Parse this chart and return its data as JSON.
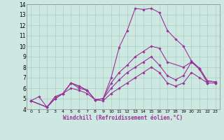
{
  "xlabel": "Windchill (Refroidissement éolien,°C)",
  "background_color": "#cce8e0",
  "grid_color": "#aaccc4",
  "line_color": "#993399",
  "xlim": [
    -0.5,
    23.5
  ],
  "ylim": [
    4,
    14
  ],
  "yticks": [
    4,
    5,
    6,
    7,
    8,
    9,
    10,
    11,
    12,
    13,
    14
  ],
  "xticks": [
    0,
    1,
    2,
    3,
    4,
    5,
    6,
    7,
    8,
    9,
    10,
    11,
    12,
    13,
    14,
    15,
    16,
    17,
    18,
    19,
    20,
    21,
    22,
    23
  ],
  "line1_x": [
    0,
    1,
    2,
    3,
    4,
    5,
    6,
    7,
    8,
    9,
    10,
    11,
    12,
    13,
    14,
    15,
    16,
    17,
    18,
    19,
    20,
    21,
    22,
    23
  ],
  "line1_y": [
    4.8,
    5.2,
    4.2,
    5.2,
    5.5,
    6.5,
    6.2,
    5.8,
    4.9,
    5.0,
    7.0,
    9.9,
    11.5,
    13.6,
    13.5,
    13.6,
    13.2,
    11.5,
    10.7,
    10.0,
    8.6,
    7.9,
    6.7,
    6.6
  ],
  "line2_x": [
    0,
    2,
    3,
    4,
    5,
    6,
    7,
    8,
    9,
    10,
    11,
    12,
    13,
    14,
    15,
    16,
    17,
    19,
    20,
    21,
    22,
    23
  ],
  "line2_y": [
    4.8,
    4.2,
    5.0,
    5.5,
    6.5,
    6.2,
    5.8,
    4.9,
    5.0,
    6.5,
    7.5,
    8.2,
    9.0,
    9.5,
    10.0,
    9.8,
    8.5,
    8.0,
    8.5,
    7.9,
    6.7,
    6.6
  ],
  "line3_x": [
    0,
    2,
    3,
    4,
    5,
    6,
    7,
    8,
    9,
    10,
    11,
    12,
    13,
    14,
    15,
    16,
    17,
    18,
    19,
    20,
    21,
    22,
    23
  ],
  "line3_y": [
    4.8,
    4.2,
    5.0,
    5.5,
    6.5,
    6.0,
    5.8,
    4.9,
    5.0,
    6.0,
    6.8,
    7.5,
    8.0,
    8.5,
    9.0,
    8.2,
    7.2,
    6.8,
    7.2,
    8.5,
    7.8,
    6.5,
    6.5
  ],
  "line4_x": [
    0,
    2,
    3,
    4,
    5,
    6,
    7,
    8,
    9,
    10,
    11,
    12,
    13,
    14,
    15,
    16,
    17,
    18,
    19,
    20,
    21,
    22,
    23
  ],
  "line4_y": [
    4.8,
    4.2,
    5.0,
    5.5,
    6.0,
    5.8,
    5.5,
    4.9,
    4.8,
    5.5,
    6.0,
    6.5,
    7.0,
    7.5,
    8.0,
    7.5,
    6.5,
    6.2,
    6.5,
    7.5,
    7.0,
    6.5,
    6.5
  ]
}
